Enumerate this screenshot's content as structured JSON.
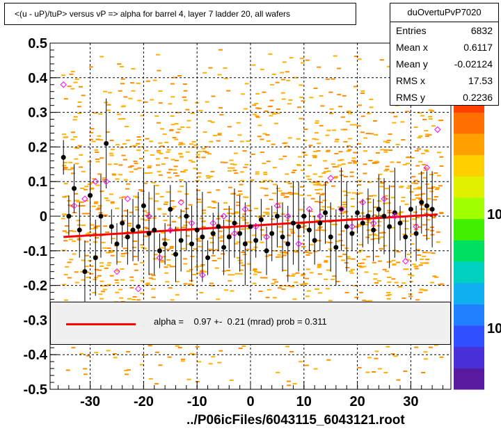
{
  "title": "<(u - uP)/tuP> versus   vP => alpha for barrel 4, layer 7 ladder 20, all wafers",
  "stats": {
    "name": "duOvertuPvP7020",
    "rows": [
      {
        "label": "Entries",
        "value": "6832"
      },
      {
        "label": "Mean x",
        "value": "0.6117"
      },
      {
        "label": "Mean y",
        "value": "-0.02124"
      },
      {
        "label": "RMS x",
        "value": "17.53"
      },
      {
        "label": "RMS y",
        "value": "0.2236"
      }
    ]
  },
  "fit": {
    "text": "alpha =    0.97 +-  0.21 (mrad) prob = 0.311",
    "color": "#ff0000"
  },
  "footer": "../P06icFiles/6043115_6043121.root",
  "palette_labels": [
    "10",
    "10"
  ],
  "colors": {
    "hist_dark": "#ff8c00",
    "hist_light": "#ffb000",
    "profile": "#000000",
    "open_marker": "#ff00ff",
    "fit_line": "#ff0000"
  },
  "chart_data": {
    "type": "scatter",
    "title": "<(u - uP)/tuP> versus   vP => alpha for barrel 4, layer 7 ladder 20, all wafers",
    "xlabel": "",
    "ylabel": "",
    "xlim": [
      -37.5,
      37.5
    ],
    "ylim": [
      -0.5,
      0.5
    ],
    "xticks": [
      -30,
      -20,
      -10,
      0,
      10,
      20,
      30
    ],
    "xtick_labels": [
      "-30",
      "-20",
      "-10",
      "0",
      "10",
      "20",
      "30"
    ],
    "yticks": [
      -0.5,
      -0.4,
      -0.3,
      -0.2,
      -0.1,
      0,
      0.1,
      0.2,
      0.3,
      0.4,
      0.5
    ],
    "ytick_labels": [
      "-0.5",
      "-0.4",
      "-0.3",
      "-0.2",
      "-0.1",
      "0",
      "0.1",
      "0.2",
      "0.3",
      "0.4",
      "0.5"
    ],
    "grid": true,
    "fit_line": {
      "x": [
        -35,
        35
      ],
      "y": [
        -0.06,
        0.005
      ]
    },
    "series": [
      {
        "name": "profile",
        "x": [
          -35,
          -34,
          -33,
          -32,
          -31,
          -30,
          -29,
          -28,
          -27,
          -26,
          -25,
          -24,
          -23,
          -22,
          -21,
          -20,
          -19,
          -18,
          -17,
          -16,
          -15,
          -14,
          -13,
          -12,
          -11,
          -10,
          -9,
          -8,
          -7,
          -6,
          -5,
          -4,
          -3,
          -2,
          -1,
          0,
          1,
          2,
          3,
          4,
          5,
          6,
          7,
          8,
          9,
          10,
          11,
          12,
          13,
          14,
          15,
          16,
          17,
          18,
          19,
          20,
          21,
          22,
          23,
          24,
          25,
          26,
          27,
          28,
          29,
          30,
          31,
          32,
          33,
          34
        ],
        "y": [
          0.17,
          0.0,
          0.08,
          -0.04,
          -0.16,
          0.06,
          -0.12,
          0.0,
          0.21,
          -0.03,
          -0.08,
          -0.02,
          -0.06,
          -0.04,
          -0.03,
          0.03,
          -0.05,
          -0.04,
          -0.1,
          -0.08,
          0.02,
          -0.11,
          -0.07,
          0.0,
          -0.08,
          -0.04,
          -0.06,
          -0.12,
          -0.05,
          -0.03,
          -0.09,
          -0.06,
          -0.02,
          -0.05,
          -0.08,
          -0.03,
          -0.07,
          -0.01,
          -0.1,
          -0.05,
          0.0,
          -0.06,
          -0.08,
          -0.02,
          -0.03,
          0.0,
          -0.04,
          -0.07,
          -0.02,
          0.01,
          -0.06,
          -0.09,
          0.02,
          -0.03,
          -0.05,
          0.01,
          -0.02,
          0.0,
          -0.04,
          0.02,
          0.0,
          -0.03,
          0.01,
          -0.02,
          -0.06,
          0.02,
          -0.05,
          0.04,
          0.03,
          0.02
        ]
      },
      {
        "name": "open",
        "x": [
          -35,
          -33,
          -31,
          -29,
          -27,
          -25,
          -23,
          -21,
          -19,
          -17,
          -15,
          -13,
          -11,
          -9,
          -7,
          -5,
          -3,
          -1,
          1,
          3,
          5,
          7,
          9,
          11,
          13,
          15,
          17,
          19,
          21,
          23,
          25,
          27,
          29,
          31,
          33,
          35
        ],
        "y": [
          0.38,
          0.03,
          0.05,
          0.1,
          0.1,
          -0.16,
          0.05,
          -0.21,
          0.0,
          -0.12,
          -0.04,
          0.04,
          -0.02,
          -0.17,
          -0.02,
          0.0,
          -0.05,
          0.02,
          -0.03,
          -0.06,
          0.03,
          0.0,
          -0.08,
          0.02,
          0.0,
          0.11,
          0.02,
          -0.03,
          0.04,
          -0.02,
          0.05,
          0.0,
          -0.13,
          -0.03,
          0.14,
          0.25
        ]
      }
    ]
  }
}
